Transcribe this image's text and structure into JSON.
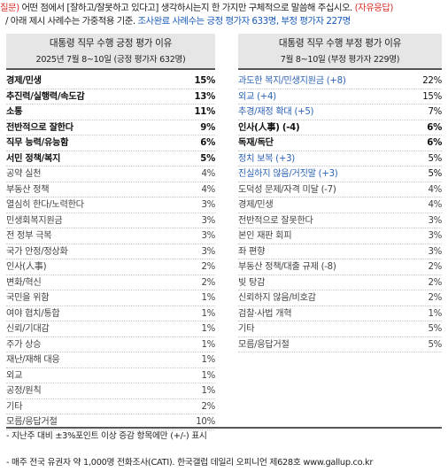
{
  "intro": {
    "line1_prefix": "질문)",
    "line1_text": " 어떤 점에서 [잘하고/잘못하고 있다고] 생각하시는지 한 가지만 구체적으로 말씀해 주십시오. ",
    "line1_suffix": "(자유응답)",
    "line2_text": "/ 아래 제시 사례수는 가중적용 기준. ",
    "line2_highlight": "조사완료 사례수는 긍정 평가자 633명, 부정 평가자 227명"
  },
  "positive": {
    "title": "대통령 직무 수행 긍정 평가 이유",
    "subtitle": "2025년 7월 8~10일 (긍정 평가자 632명)",
    "rows": [
      {
        "label": "경제/민생",
        "value": "15%",
        "style": "bold"
      },
      {
        "label": "추진력/실행력/속도감",
        "value": "13%",
        "style": "bold"
      },
      {
        "label": "소통",
        "value": "11%",
        "style": "bold"
      },
      {
        "label": "전반적으로 잘한다",
        "value": "9%",
        "style": "bold"
      },
      {
        "label": "직무 능력/유능함",
        "value": "6%",
        "style": "bold"
      },
      {
        "label": "서민 정책/복지",
        "value": "5%",
        "style": "bold"
      },
      {
        "label": "공약 실천",
        "value": "4%",
        "style": "normal"
      },
      {
        "label": "부동산 정책",
        "value": "4%",
        "style": "normal"
      },
      {
        "label": "열심히 한다/노력한다",
        "value": "3%",
        "style": "normal"
      },
      {
        "label": "민생회복지원금",
        "value": "3%",
        "style": "normal"
      },
      {
        "label": "전 정부 극복",
        "value": "3%",
        "style": "normal"
      },
      {
        "label": "국가 안정/정상화",
        "value": "3%",
        "style": "normal"
      },
      {
        "label": "인사(人事)",
        "value": "2%",
        "style": "normal"
      },
      {
        "label": "변화/혁신",
        "value": "2%",
        "style": "normal"
      },
      {
        "label": "국민을 위함",
        "value": "1%",
        "style": "normal"
      },
      {
        "label": "여야 협치/통합",
        "value": "1%",
        "style": "normal"
      },
      {
        "label": "신뢰/기대감",
        "value": "1%",
        "style": "normal"
      },
      {
        "label": "주가 상승",
        "value": "1%",
        "style": "normal"
      },
      {
        "label": "재난/재해 대응",
        "value": "1%",
        "style": "normal"
      },
      {
        "label": "외교",
        "value": "1%",
        "style": "normal"
      },
      {
        "label": "공정/원칙",
        "value": "1%",
        "style": "normal"
      },
      {
        "label": "기타",
        "value": "2%",
        "style": "normal"
      },
      {
        "label": "모름/응답거절",
        "value": "10%",
        "style": "normal"
      }
    ]
  },
  "negative": {
    "title": "대통령 직무 수행 부정 평가 이유",
    "subtitle": "7월 8~10일 (부정 평가자 229명)",
    "rows": [
      {
        "label": "과도한 복지/민생지원금 (+8)",
        "value": "22%",
        "style": "blue"
      },
      {
        "label": "외교 (+4)",
        "value": "15%",
        "style": "blue"
      },
      {
        "label": "추경/재정 확대 (+5)",
        "value": "7%",
        "style": "blue"
      },
      {
        "label": "인사(人事) (-4)",
        "value": "6%",
        "style": "bold"
      },
      {
        "label": "독재/독단",
        "value": "6%",
        "style": "bold"
      },
      {
        "label": "정치 보복 (+3)",
        "value": "5%",
        "style": "blue"
      },
      {
        "label": "진실하지 않음/거짓말 (+3)",
        "value": "5%",
        "style": "blue"
      },
      {
        "label": "도덕성 문제/자격 미달 (-7)",
        "value": "4%",
        "style": "normal"
      },
      {
        "label": "경제/민생",
        "value": "4%",
        "style": "normal"
      },
      {
        "label": "전반적으로 잘못한다",
        "value": "3%",
        "style": "normal"
      },
      {
        "label": "본인 재판 회피",
        "value": "3%",
        "style": "normal"
      },
      {
        "label": "좌 편향",
        "value": "3%",
        "style": "normal"
      },
      {
        "label": "부동산 정책/대출 규제 (-8)",
        "value": "2%",
        "style": "normal"
      },
      {
        "label": "빚 탕감",
        "value": "2%",
        "style": "normal"
      },
      {
        "label": "신뢰하지 않음/비호감",
        "value": "2%",
        "style": "normal"
      },
      {
        "label": "검찰·사법 개혁",
        "value": "1%",
        "style": "normal"
      },
      {
        "label": "기타",
        "value": "5%",
        "style": "normal"
      },
      {
        "label": "모름/응답거절",
        "value": "5%",
        "style": "normal"
      }
    ]
  },
  "footer": {
    "note1": "- 지난주 대비 ±3%포인트 이상 증감 항목에만 (+/-) 표시",
    "note2": "- 매주 전국 유권자 약 1,000명 전화조사(CATI). 한국갤럽 데일리 오피니언 제628호 www.gallup.co.kr"
  }
}
